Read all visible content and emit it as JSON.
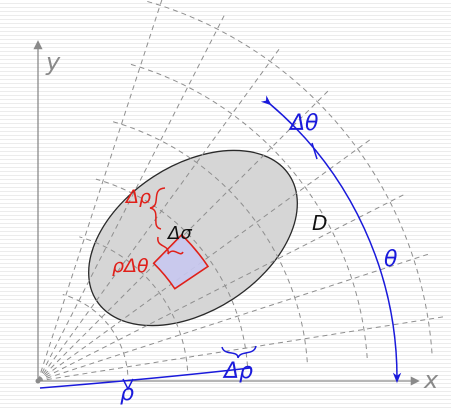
{
  "labels": {
    "y_axis": "y",
    "x_axis": "x",
    "delta_theta": "Δθ",
    "theta": "θ",
    "region": "D",
    "delta_rho_small": "Δρ",
    "rho_delta_theta": "ρΔθ",
    "delta_sigma": "Δσ",
    "rho": "ρ",
    "delta_rho": "Δρ"
  },
  "colors": {
    "axis": "#8a8a8a",
    "grid": "#8f8f8f",
    "region_fill": "#d6d6d6",
    "region_stroke": "#2a2a2a",
    "cell_fill": "#c8c8f0",
    "red": "#e0201a",
    "blue": "#1a1adb"
  }
}
